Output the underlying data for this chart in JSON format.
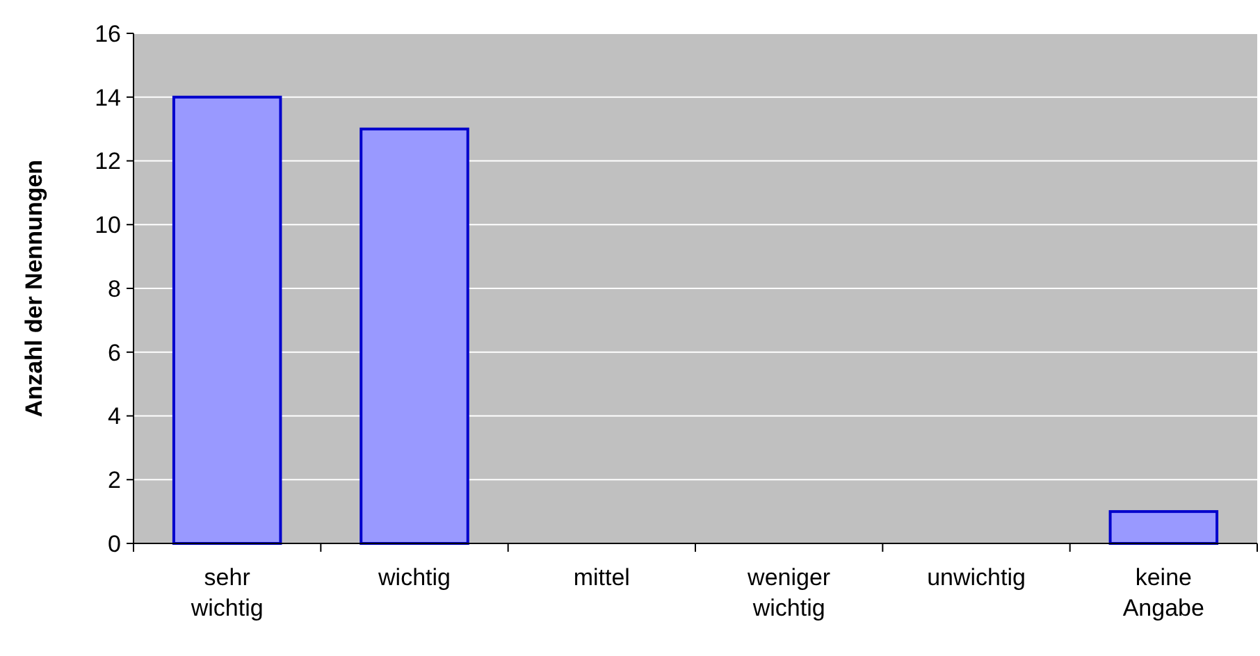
{
  "chart_data": {
    "type": "bar",
    "ylabel": "Anzahl der Nennungen",
    "categories": [
      "sehr wichtig",
      "wichtig",
      "mittel",
      "weniger wichtig",
      "unwichtig",
      "keine Angabe"
    ],
    "values": [
      14,
      13,
      0,
      0,
      0,
      1
    ],
    "color": "#9999ff",
    "ylim": [
      0,
      16
    ],
    "yticks": [
      0,
      2,
      4,
      6,
      8,
      10,
      12,
      14,
      16
    ],
    "grid": "y"
  }
}
